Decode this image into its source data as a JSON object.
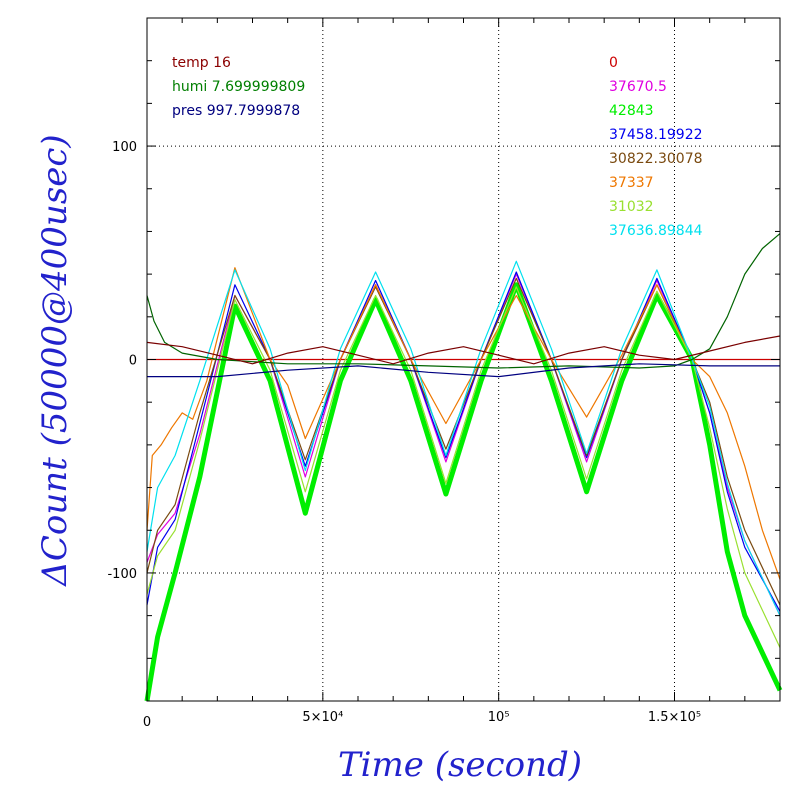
{
  "chart_data": {
    "type": "line",
    "xlabel": "Time (second)",
    "ylabel": "ΔCount (50000@400usec)",
    "xlim": [
      0,
      180000
    ],
    "ylim": [
      -160,
      160
    ],
    "x_ticks": [
      {
        "value": 0,
        "label": "0"
      },
      {
        "value": 50000,
        "label": "5×10⁴"
      },
      {
        "value": 100000,
        "label": "10⁵"
      },
      {
        "value": 150000,
        "label": "1.5×10⁵"
      }
    ],
    "y_ticks": [
      {
        "value": -100,
        "label": "-100"
      },
      {
        "value": 0,
        "label": "0"
      },
      {
        "value": 100,
        "label": "100"
      }
    ],
    "grid": "dotted",
    "legend_left": [
      {
        "text": "temp 16",
        "color": "#8b0000"
      },
      {
        "text": "humi 7.699999809",
        "color": "#007f00"
      },
      {
        "text": "pres 997.7999878",
        "color": "#00007f"
      }
    ],
    "series": [
      {
        "name": "0",
        "color": "#cc0000",
        "x": [
          0,
          180000
        ],
        "y": [
          0,
          0
        ]
      },
      {
        "name": "37670.5",
        "color": "#e000e0",
        "x": [
          0,
          3000,
          8000,
          15000,
          25000,
          35000,
          45000,
          55000,
          65000,
          75000,
          85000,
          95000,
          105000,
          115000,
          125000,
          135000,
          145000,
          155000,
          160000,
          165000,
          170000,
          180000
        ],
        "y": [
          -95,
          -82,
          -72,
          -35,
          30,
          0,
          -55,
          0,
          35,
          0,
          -48,
          0,
          40,
          0,
          -48,
          0,
          37,
          0,
          -25,
          -60,
          -85,
          -120
        ]
      },
      {
        "name": "42843",
        "color": "#00ee00",
        "width": 5,
        "x": [
          0,
          3000,
          8000,
          15000,
          25000,
          35000,
          45000,
          55000,
          65000,
          75000,
          85000,
          95000,
          105000,
          115000,
          125000,
          135000,
          145000,
          155000,
          160000,
          165000,
          170000,
          180000
        ],
        "y": [
          -160,
          -130,
          -100,
          -55,
          25,
          -10,
          -72,
          -10,
          28,
          -10,
          -63,
          -10,
          35,
          -10,
          -62,
          -10,
          30,
          0,
          -40,
          -90,
          -120,
          -155
        ]
      },
      {
        "name": "37458.19922",
        "color": "#0000ee",
        "x": [
          0,
          3000,
          8000,
          15000,
          25000,
          35000,
          45000,
          55000,
          65000,
          75000,
          85000,
          95000,
          105000,
          115000,
          125000,
          135000,
          145000,
          155000,
          160000,
          165000,
          170000,
          180000
        ],
        "y": [
          -115,
          -88,
          -75,
          -30,
          35,
          0,
          -50,
          0,
          37,
          0,
          -46,
          0,
          41,
          0,
          -46,
          0,
          38,
          0,
          -25,
          -62,
          -88,
          -118
        ]
      },
      {
        "name": "30822.30078",
        "color": "#7a4a10",
        "x": [
          0,
          3000,
          8000,
          15000,
          25000,
          35000,
          45000,
          55000,
          65000,
          75000,
          85000,
          95000,
          105000,
          115000,
          125000,
          135000,
          145000,
          155000,
          160000,
          165000,
          170000,
          180000
        ],
        "y": [
          -100,
          -80,
          -68,
          -25,
          30,
          0,
          -47,
          0,
          34,
          0,
          -42,
          0,
          38,
          0,
          -45,
          0,
          35,
          0,
          -20,
          -55,
          -80,
          -115
        ]
      },
      {
        "name": "37337",
        "color": "#ee7700",
        "x": [
          0,
          1500,
          4000,
          7000,
          10000,
          13000,
          17000,
          25000,
          35000,
          40000,
          45000,
          55000,
          65000,
          75000,
          85000,
          95000,
          105000,
          115000,
          125000,
          135000,
          145000,
          155000,
          160000,
          165000,
          170000,
          175000,
          180000
        ],
        "y": [
          -80,
          -45,
          -40,
          -32,
          -25,
          -28,
          -10,
          43,
          0,
          -12,
          -37,
          0,
          35,
          0,
          -30,
          0,
          30,
          0,
          -27,
          2,
          35,
          0,
          -8,
          -25,
          -50,
          -80,
          -103
        ]
      },
      {
        "name": "31032",
        "color": "#99e030",
        "x": [
          0,
          3000,
          8000,
          15000,
          25000,
          35000,
          45000,
          55000,
          65000,
          75000,
          85000,
          95000,
          105000,
          115000,
          125000,
          135000,
          145000,
          155000,
          160000,
          165000,
          170000,
          180000
        ],
        "y": [
          -110,
          -92,
          -80,
          -38,
          28,
          -5,
          -62,
          -5,
          30,
          -5,
          -58,
          -5,
          34,
          -5,
          -56,
          -5,
          32,
          0,
          -32,
          -70,
          -100,
          -135
        ]
      },
      {
        "name": "37636.89844",
        "color": "#00e0ee",
        "x": [
          0,
          3000,
          8000,
          15000,
          25000,
          35000,
          45000,
          55000,
          65000,
          75000,
          85000,
          95000,
          105000,
          115000,
          125000,
          135000,
          145000,
          155000,
          160000,
          165000,
          170000,
          180000
        ],
        "y": [
          -90,
          -60,
          -45,
          -10,
          42,
          5,
          -52,
          5,
          41,
          5,
          -45,
          5,
          46,
          5,
          -44,
          5,
          42,
          0,
          -22,
          -58,
          -85,
          -120
        ]
      },
      {
        "name": "",
        "color": "#006400",
        "x": [
          0,
          2000,
          5000,
          10000,
          20000,
          40000,
          60000,
          80000,
          100000,
          120000,
          140000,
          150000,
          155000,
          160000,
          165000,
          170000,
          175000,
          180000
        ],
        "y": [
          30,
          18,
          8,
          3,
          0,
          -2,
          -2,
          -3,
          -4,
          -3,
          -4,
          -3,
          0,
          5,
          20,
          40,
          52,
          59
        ]
      },
      {
        "name": "",
        "color": "#7a0000",
        "x": [
          0,
          10000,
          20000,
          30000,
          40000,
          50000,
          60000,
          70000,
          80000,
          90000,
          100000,
          110000,
          120000,
          130000,
          140000,
          150000,
          160000,
          170000,
          180000
        ],
        "y": [
          8,
          6,
          2,
          -2,
          3,
          6,
          2,
          -2,
          3,
          6,
          2,
          -2,
          3,
          6,
          2,
          0,
          4,
          8,
          11
        ]
      },
      {
        "name": "",
        "color": "#000080",
        "x": [
          0,
          20000,
          40000,
          60000,
          80000,
          100000,
          120000,
          140000,
          160000,
          180000
        ],
        "y": [
          -8,
          -8,
          -5,
          -3,
          -6,
          -8,
          -4,
          -2,
          -3,
          -3
        ]
      }
    ]
  }
}
